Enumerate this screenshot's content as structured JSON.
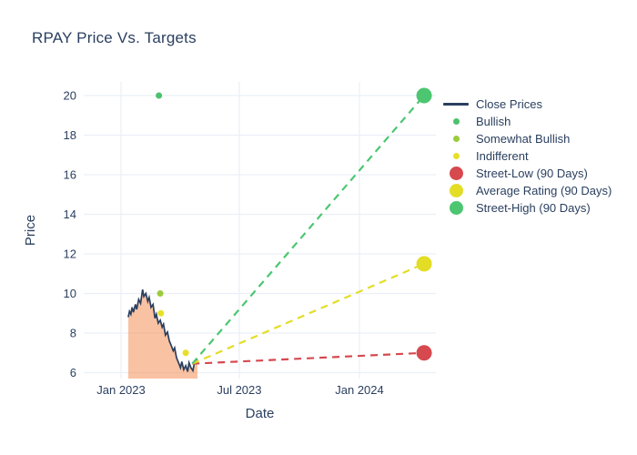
{
  "page": {
    "background": "#ffffff",
    "text_color": "#2a3f5f",
    "grid_color": "#eaf0f8"
  },
  "chart_data": {
    "type": "line+scatter",
    "title": "RPAY Price Vs. Targets",
    "xlabel": "Date",
    "ylabel": "Price",
    "x_unit": "days since 2023-01-01",
    "x_ticks": [
      {
        "label": "Jan 2023",
        "day": 0
      },
      {
        "label": "Jul 2023",
        "day": 181
      },
      {
        "label": "Jan 2024",
        "day": 365
      }
    ],
    "y_ticks": [
      6,
      8,
      10,
      12,
      14,
      16,
      18,
      20
    ],
    "ylim": [
      5.7,
      20.7
    ],
    "xlim_days": [
      -53,
      481
    ],
    "grid": true,
    "legend_position": "right",
    "close_prices": {
      "name": "Close Prices",
      "color": "#2a3f5f",
      "fill": "tozeroy",
      "fill_color": "rgba(244,134,70,0.5)",
      "points": [
        [
          11,
          8.8
        ],
        [
          13,
          9.1
        ],
        [
          15,
          8.95
        ],
        [
          17,
          9.3
        ],
        [
          19,
          9.05
        ],
        [
          22,
          9.45
        ],
        [
          24,
          9.2
        ],
        [
          27,
          9.7
        ],
        [
          30,
          9.5
        ],
        [
          33,
          10.2
        ],
        [
          35,
          9.85
        ],
        [
          38,
          10.0
        ],
        [
          41,
          9.6
        ],
        [
          43,
          9.8
        ],
        [
          46,
          9.3
        ],
        [
          49,
          9.45
        ],
        [
          52,
          8.75
        ],
        [
          54,
          8.95
        ],
        [
          57,
          8.5
        ],
        [
          60,
          8.65
        ],
        [
          63,
          8.3
        ],
        [
          65,
          8.45
        ],
        [
          68,
          7.9
        ],
        [
          71,
          8.05
        ],
        [
          74,
          7.6
        ],
        [
          77,
          7.35
        ],
        [
          80,
          7.1
        ],
        [
          82,
          7.25
        ],
        [
          85,
          6.75
        ],
        [
          88,
          6.5
        ],
        [
          91,
          6.25
        ],
        [
          93,
          6.55
        ],
        [
          96,
          6.15
        ],
        [
          99,
          6.35
        ],
        [
          102,
          6.05
        ],
        [
          104,
          6.5
        ],
        [
          107,
          6.25
        ],
        [
          110,
          6.1
        ],
        [
          113,
          6.6
        ],
        [
          117,
          6.7
        ]
      ]
    },
    "ratings": [
      {
        "name": "Bullish",
        "color": "#4cc16e",
        "points": [
          [
            58,
            20
          ]
        ]
      },
      {
        "name": "Somewhat Bullish",
        "color": "#9ccb3b",
        "points": [
          [
            60,
            10
          ]
        ]
      },
      {
        "name": "Indifferent",
        "color": "#e7e029",
        "points": [
          [
            61,
            9
          ],
          [
            99,
            7
          ]
        ]
      }
    ],
    "targets": [
      {
        "name": "Street-Low (90 Days)",
        "color": "#d6494f",
        "start_day": 109,
        "start_price": 6.45,
        "end_day": 464,
        "end_price": 7.0
      },
      {
        "name": "Average Rating (90 Days)",
        "color": "#e3dd26",
        "start_day": 109,
        "start_price": 6.45,
        "end_day": 464,
        "end_price": 11.5
      },
      {
        "name": "Street-High (90 Days)",
        "color": "#4cc671",
        "start_day": 109,
        "start_price": 6.45,
        "end_day": 464,
        "end_price": 20.0
      }
    ],
    "legend": [
      {
        "label": "Close Prices",
        "type": "line",
        "color": "#2a3f5f"
      },
      {
        "label": "Bullish",
        "type": "dot-small",
        "color": "#4cc16e"
      },
      {
        "label": "Somewhat Bullish",
        "type": "dot-small",
        "color": "#9ccb3b"
      },
      {
        "label": "Indifferent",
        "type": "dot-small",
        "color": "#e7e029"
      },
      {
        "label": "Street-Low (90 Days)",
        "type": "dot-large",
        "color": "#d6494f"
      },
      {
        "label": "Average Rating (90 Days)",
        "type": "dot-large",
        "color": "#e3dd26"
      },
      {
        "label": "Street-High (90 Days)",
        "type": "dot-large",
        "color": "#4cc671"
      }
    ]
  }
}
